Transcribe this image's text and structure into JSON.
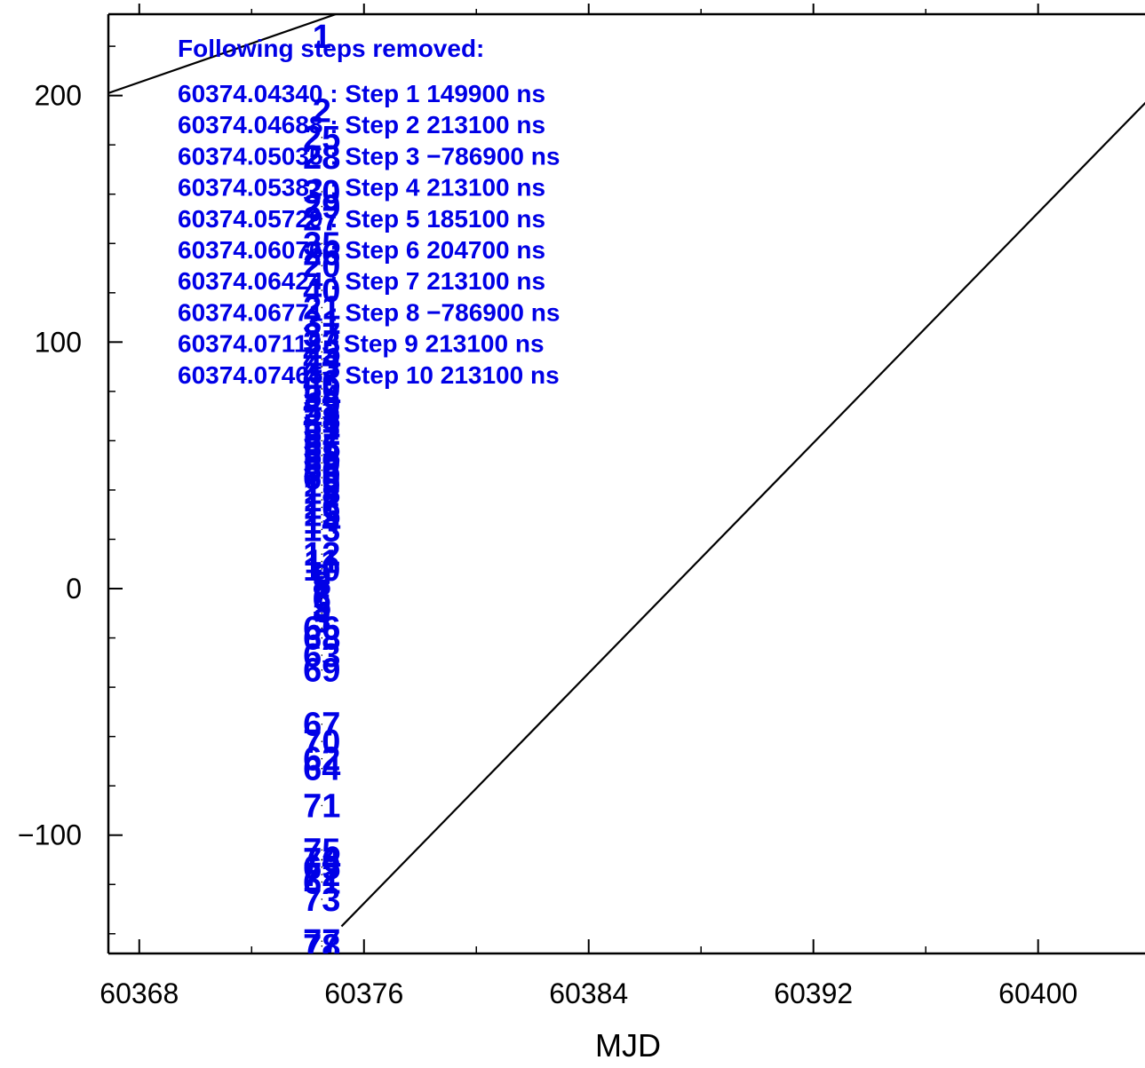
{
  "chart_data": {
    "type": "scatter",
    "title": "",
    "xlabel": "MJD",
    "ylabel": "",
    "xlim": [
      60366.9,
      60403.9
    ],
    "ylim": [
      -148,
      233
    ],
    "xticks": [
      60368,
      60376,
      60384,
      60392,
      60400
    ],
    "xtick_labels": [
      "60368",
      "60376",
      "60384",
      "60392",
      "60400"
    ],
    "yticks": [
      -100,
      0,
      100,
      200
    ],
    "ytick_labels": [
      "−100",
      "0",
      "100",
      "200"
    ],
    "grid": false,
    "legend": "none",
    "colors": {
      "labels": "#0000e6",
      "lines": "#000000",
      "axes": "#000000"
    },
    "annotation": {
      "header": "Following steps removed:",
      "steps": [
        "60374.04340 : Step 1 149900 ns",
        "60374.04688 : Step 2 213100 ns",
        "60374.05035 : Step 3 −786900 ns",
        "60374.05382 : Step 4 213100 ns",
        "60374.05729 : Step 5 185100 ns",
        "60374.06076 : Step 6 204700 ns",
        "60374.06424 : Step 7 213100 ns",
        "60374.06771 : Step 8 −786900 ns",
        "60374.07118 : Step 9 213100 ns",
        "60374.07465 : Step 10 213100 ns"
      ]
    },
    "lines": [
      {
        "x": [
          60366.9,
          60375.0
        ],
        "y": [
          201,
          233
        ]
      },
      {
        "x": [
          60375.2,
          60403.9
        ],
        "y": [
          -137,
          198
        ]
      }
    ],
    "points": {
      "x": 60374.5,
      "labels": [
        "1",
        "2",
        "25",
        "28",
        "30",
        "29",
        "27",
        "35",
        "26",
        "20",
        "40",
        "21",
        "31",
        "37",
        "33",
        "45",
        "44",
        "43",
        "47",
        "46",
        "50",
        "54",
        "49",
        "53",
        "48",
        "51",
        "52",
        "57",
        "55",
        "58",
        "59",
        "56",
        "60",
        "19",
        "18",
        "17",
        "16",
        "15",
        "14",
        "13",
        "12",
        "11",
        "10",
        "9",
        "8",
        "7",
        "6",
        "5",
        "4",
        "3",
        "66",
        "68",
        "63",
        "69",
        "67",
        "70",
        "62",
        "64",
        "71",
        "75",
        "74",
        "65",
        "72",
        "61",
        "73",
        "76",
        "77",
        "78"
      ],
      "y": [
        224,
        194,
        183,
        175,
        161,
        155,
        150,
        140,
        136,
        131,
        121,
        114,
        108,
        103,
        100,
        96,
        93,
        90,
        87,
        84,
        81,
        78,
        75,
        72,
        69,
        66,
        63,
        60,
        57,
        54,
        51,
        48,
        45,
        42,
        39,
        36,
        33,
        30,
        27,
        24,
        14,
        11,
        8,
        5,
        2,
        -1,
        -4,
        -7,
        -10,
        -13,
        -16,
        -20,
        -27,
        -33,
        -55,
        -62,
        -69,
        -73,
        -88,
        -106,
        -110,
        -113,
        -116,
        -119,
        -126,
        -151,
        -190,
        -197
      ],
      "display_y": [
        224,
        194,
        183,
        175,
        161,
        155,
        150,
        140,
        136,
        131,
        121,
        114,
        108,
        103,
        100,
        96,
        93,
        90,
        87,
        84,
        81,
        78,
        75,
        72,
        69,
        66,
        63,
        60,
        57,
        54,
        51,
        48,
        45,
        42,
        39,
        36,
        33,
        30,
        27,
        24,
        14,
        11,
        8,
        5,
        2,
        -1,
        -4,
        -7,
        -10,
        -13,
        -16,
        -20,
        -27,
        -33,
        -55,
        -62,
        -69,
        -73,
        -88,
        -106,
        -110,
        -113,
        -116,
        -119,
        -126,
        -110,
        -143,
        -145
      ]
    }
  }
}
